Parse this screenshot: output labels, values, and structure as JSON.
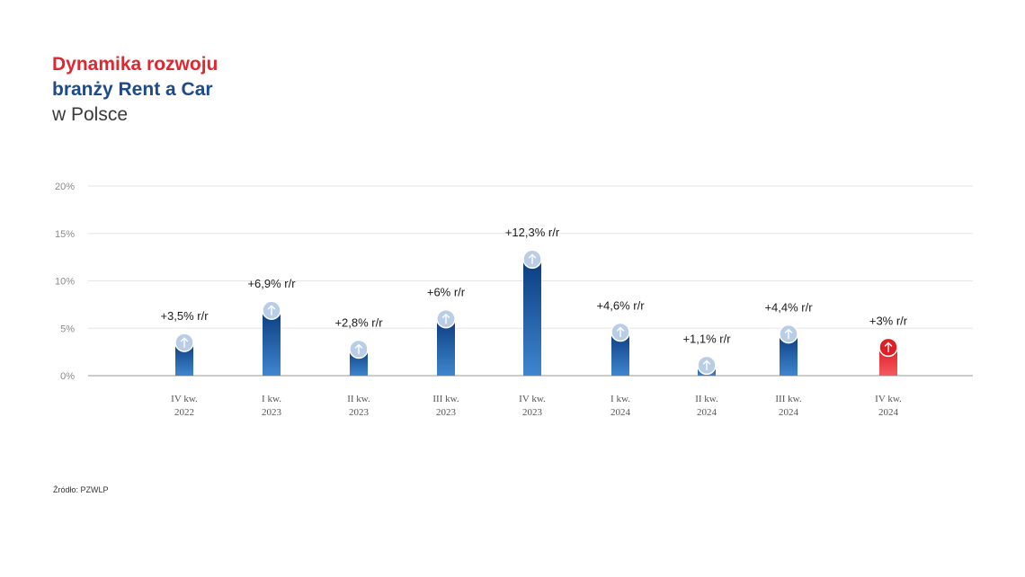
{
  "title": {
    "line1": "Dynamika rozwoju",
    "line2": "branży Rent a Car",
    "line3": "w Polsce"
  },
  "source": "Źródło: PZWLP",
  "colors": {
    "title_red": "#e0262f",
    "title_blue": "#1d4a8c",
    "title_gray": "#3a3a3a",
    "bar_dark": "#0b3c7f",
    "bar_light": "#3f86cf",
    "highlight_dark": "#e11d25",
    "highlight_light": "#f25a5f",
    "marker": "#b9cde6",
    "grid": "#e6e6e6",
    "axis": "#9a9a9a",
    "tick_text": "#8a8a8a"
  },
  "chart_data": {
    "type": "bar",
    "categories": [
      [
        "IV kw.",
        "2022"
      ],
      [
        "I kw.",
        "2023"
      ],
      [
        "II kw.",
        "2023"
      ],
      [
        "III kw.",
        "2023"
      ],
      [
        "IV kw.",
        "2023"
      ],
      [
        "I kw.",
        "2024"
      ],
      [
        "II kw.",
        "2024"
      ],
      [
        "III kw.",
        "2024"
      ],
      [
        "IV kw.",
        "2024"
      ]
    ],
    "values": [
      3.5,
      6.9,
      2.8,
      6,
      12.3,
      4.6,
      1.1,
      4.4,
      3
    ],
    "data_labels": [
      "+3,5% r/r",
      "+6,9% r/r",
      "+2,8% r/r",
      "+6% r/r",
      "+12,3% r/r",
      "+4,6% r/r",
      "+1,1% r/r",
      "+4,4% r/r",
      "+3% r/r"
    ],
    "highlight_index": 8,
    "ylim": [
      0,
      20
    ],
    "yticks": [
      "0%",
      "5%",
      "10%",
      "15%",
      "20%"
    ],
    "grid": true,
    "legend": "none",
    "marker_icon": "arrow-up-icon"
  }
}
